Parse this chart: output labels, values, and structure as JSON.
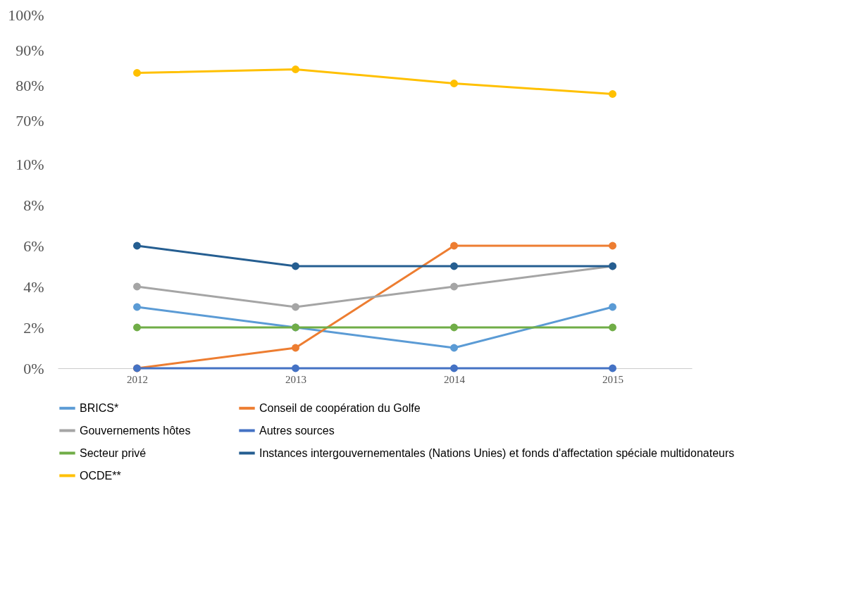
{
  "chart_data": [
    {
      "type": "line",
      "categories": [
        "2012",
        "2013",
        "2014",
        "2015"
      ],
      "ylim": [
        70,
        100
      ],
      "yticks": [
        {
          "value": 70,
          "label": "70%"
        },
        {
          "value": 80,
          "label": "80%"
        },
        {
          "value": 90,
          "label": "90%"
        },
        {
          "value": 100,
          "label": "100%"
        }
      ],
      "tick_labels": "y",
      "marker": "circle",
      "grid": false,
      "legend": "bottom",
      "series": [
        {
          "name": "OCDE**",
          "color": "#ffc000",
          "values": [
            83.5,
            84.5,
            80.5,
            77.5
          ]
        }
      ]
    },
    {
      "type": "line",
      "categories": [
        "2012",
        "2013",
        "2014",
        "2015"
      ],
      "ylim": [
        0,
        10
      ],
      "yticks": [
        {
          "value": 0,
          "label": "0%"
        },
        {
          "value": 2,
          "label": "2%"
        },
        {
          "value": 4,
          "label": "4%"
        },
        {
          "value": 6,
          "label": "6%"
        },
        {
          "value": 8,
          "label": "8%"
        },
        {
          "value": 10,
          "label": "10%"
        }
      ],
      "marker": "circle",
      "grid": false,
      "legend": "bottom",
      "series": [
        {
          "name": "BRICS*",
          "color": "#5b9bd5",
          "values": [
            3,
            2,
            1,
            3
          ]
        },
        {
          "name": "Conseil de coopération du Golfe",
          "color": "#ed7d31",
          "values": [
            0,
            1,
            6,
            6
          ]
        },
        {
          "name": "Gouvernements hôtes",
          "color": "#a5a5a5",
          "values": [
            4,
            3,
            4,
            5
          ]
        },
        {
          "name": "Autres sources",
          "color": "#4472c4",
          "values": [
            0,
            0,
            0,
            0
          ]
        },
        {
          "name": "Secteur privé",
          "color": "#70ad47",
          "values": [
            2,
            2,
            2,
            2
          ]
        },
        {
          "name": "Instances intergouvernementales (Nations Unies) et fonds d'affectation spéciale multidonateurs",
          "color": "#255e91",
          "values": [
            6,
            5,
            5,
            5
          ]
        }
      ]
    }
  ]
}
